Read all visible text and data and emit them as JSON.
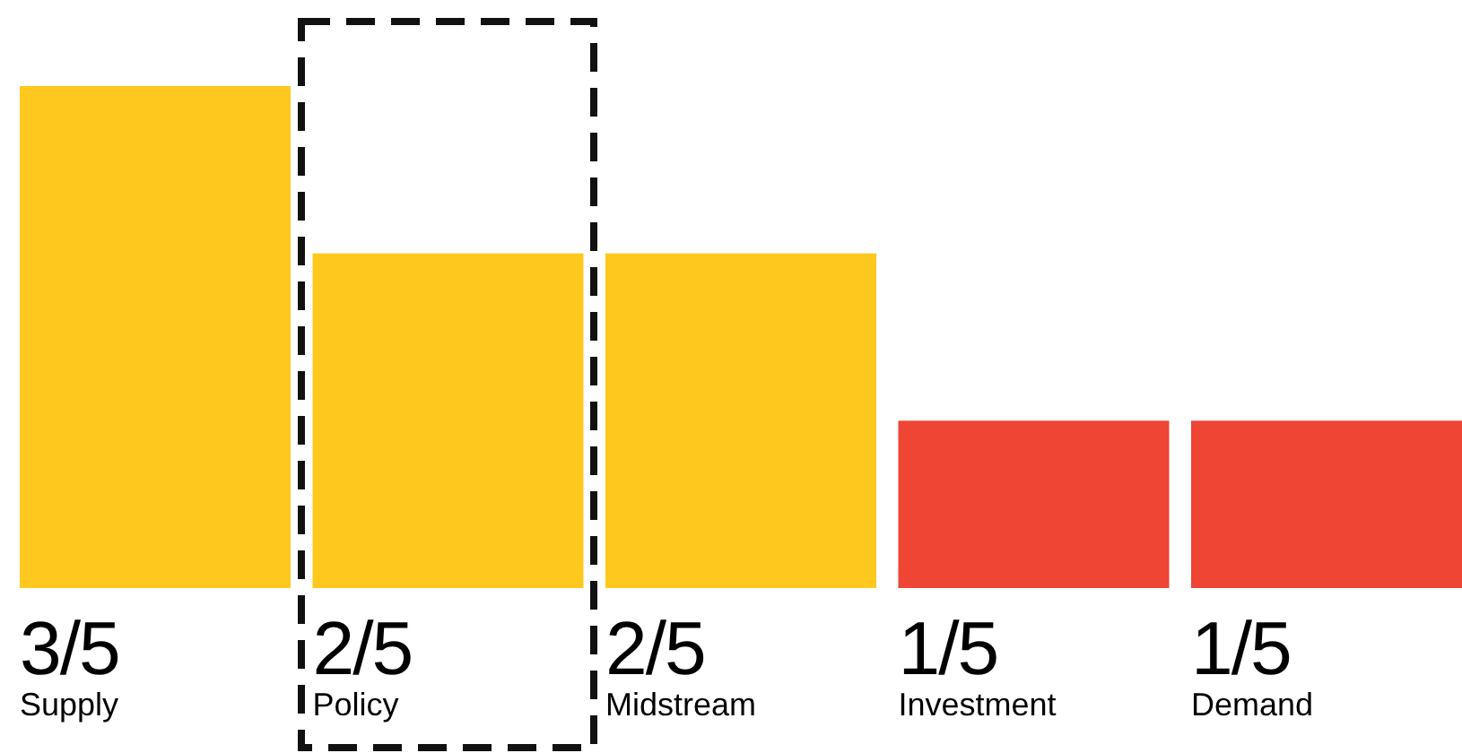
{
  "chart_data": {
    "type": "bar",
    "categories": [
      "Supply",
      "Policy",
      "Midstream",
      "Investment",
      "Demand"
    ],
    "values": [
      0.6,
      0.4,
      0.4,
      0.2,
      0.2
    ],
    "value_labels": [
      "3/5",
      "2/5",
      "2/5",
      "1/5",
      "1/5"
    ],
    "colors": [
      "#fec81e",
      "#fec81e",
      "#fec81e",
      "#ee4535",
      "#ee4535"
    ],
    "grid": false
  }
}
